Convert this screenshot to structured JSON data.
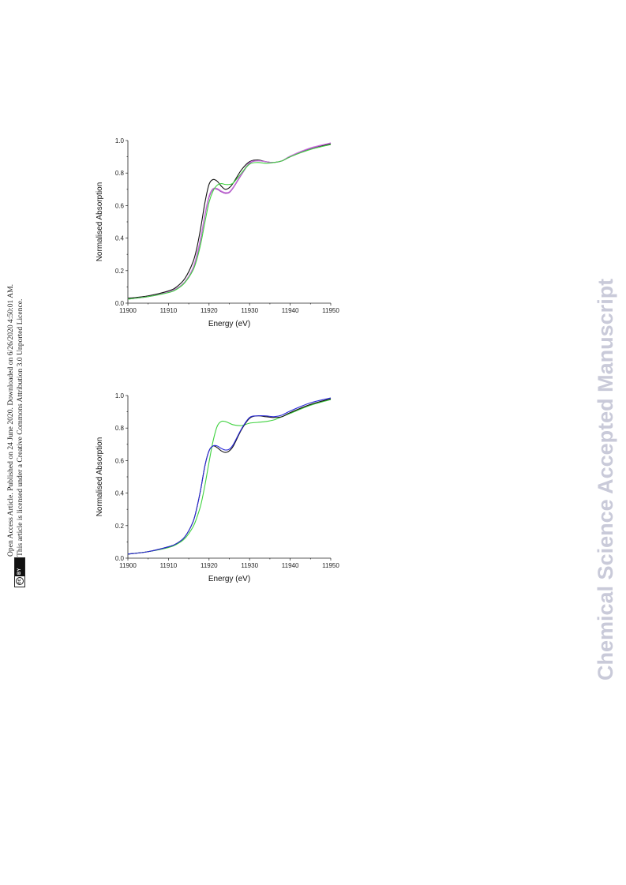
{
  "notice": {
    "line1": "Open Access Article. Published on 24 June 2020. Downloaded on 6/26/2020 4:50:01 AM.",
    "line2": "This article is licensed under a Creative Commons Attribution 3.0 Unported Licence.",
    "badge_cc": "cc",
    "badge_by": "BY"
  },
  "watermark": "Chemical Science Accepted Manuscript",
  "chart_data": [
    {
      "type": "line",
      "title": "",
      "xlabel": "Energy (eV)",
      "ylabel": "Normalised Absorption",
      "xlim": [
        11900,
        11950
      ],
      "ylim": [
        0.0,
        1.0
      ],
      "xticks": [
        11900,
        11910,
        11920,
        11930,
        11940,
        11950
      ],
      "yticks": [
        0.0,
        0.2,
        0.4,
        0.6,
        0.8,
        1.0
      ],
      "xtick_labels": [
        "11900",
        "11910",
        "11920",
        "11930",
        "11940",
        "11950"
      ],
      "ytick_labels": [
        "0.0",
        "0.2",
        "0.4",
        "0.6",
        "0.8",
        "1.0"
      ],
      "grid": false,
      "series": [
        {
          "color": "#111111",
          "x": [
            11900,
            11905,
            11910,
            11912,
            11914,
            11916,
            11917,
            11918,
            11919,
            11920,
            11921,
            11922,
            11923,
            11924,
            11925,
            11926,
            11928,
            11930,
            11932,
            11934,
            11936,
            11938,
            11940,
            11945,
            11950
          ],
          "y": [
            0.03,
            0.045,
            0.075,
            0.1,
            0.15,
            0.25,
            0.34,
            0.47,
            0.62,
            0.73,
            0.76,
            0.75,
            0.72,
            0.7,
            0.71,
            0.74,
            0.82,
            0.87,
            0.88,
            0.87,
            0.865,
            0.875,
            0.9,
            0.95,
            0.98
          ]
        },
        {
          "color": "#9b3fb5",
          "x": [
            11900,
            11905,
            11910,
            11912,
            11914,
            11916,
            11917,
            11918,
            11919,
            11920,
            11921,
            11922,
            11923,
            11924,
            11925,
            11926,
            11928,
            11930,
            11932,
            11934,
            11936,
            11938,
            11940,
            11945,
            11950
          ],
          "y": [
            0.025,
            0.04,
            0.068,
            0.09,
            0.13,
            0.21,
            0.29,
            0.4,
            0.54,
            0.65,
            0.7,
            0.7,
            0.685,
            0.675,
            0.68,
            0.71,
            0.79,
            0.86,
            0.875,
            0.87,
            0.865,
            0.875,
            0.9,
            0.95,
            0.985
          ]
        },
        {
          "color": "#cc77dd",
          "x": [
            11900,
            11905,
            11910,
            11912,
            11914,
            11916,
            11917,
            11918,
            11919,
            11920,
            11921,
            11922,
            11923,
            11924,
            11925,
            11926,
            11928,
            11930,
            11932,
            11934,
            11936,
            11938,
            11940,
            11945,
            11950
          ],
          "y": [
            0.025,
            0.04,
            0.068,
            0.09,
            0.13,
            0.215,
            0.3,
            0.41,
            0.55,
            0.66,
            0.705,
            0.705,
            0.69,
            0.68,
            0.685,
            0.715,
            0.795,
            0.865,
            0.875,
            0.87,
            0.865,
            0.875,
            0.905,
            0.955,
            0.985
          ]
        },
        {
          "color": "#3fd23f",
          "x": [
            11900,
            11905,
            11910,
            11912,
            11914,
            11916,
            11917,
            11918,
            11919,
            11920,
            11921,
            11922,
            11923,
            11924,
            11925,
            11926,
            11928,
            11930,
            11932,
            11934,
            11936,
            11938,
            11940,
            11945,
            11950
          ],
          "y": [
            0.025,
            0.04,
            0.065,
            0.085,
            0.125,
            0.2,
            0.27,
            0.37,
            0.5,
            0.62,
            0.69,
            0.725,
            0.735,
            0.73,
            0.73,
            0.74,
            0.8,
            0.855,
            0.865,
            0.86,
            0.865,
            0.875,
            0.9,
            0.945,
            0.975
          ]
        }
      ]
    },
    {
      "type": "line",
      "title": "",
      "xlabel": "Energy (eV)",
      "ylabel": "Normalised Absorption",
      "xlim": [
        11900,
        11950
      ],
      "ylim": [
        0.0,
        1.0
      ],
      "xticks": [
        11900,
        11910,
        11920,
        11930,
        11940,
        11950
      ],
      "yticks": [
        0.0,
        0.2,
        0.4,
        0.6,
        0.8,
        1.0
      ],
      "xtick_labels": [
        "11900",
        "11910",
        "11920",
        "11930",
        "11940",
        "11950"
      ],
      "ytick_labels": [
        "0.0",
        "0.2",
        "0.4",
        "0.6",
        "0.8",
        "1.0"
      ],
      "grid": false,
      "series": [
        {
          "color": "#3fd23f",
          "x": [
            11900,
            11905,
            11910,
            11912,
            11914,
            11916,
            11917,
            11918,
            11919,
            11920,
            11921,
            11922,
            11923,
            11924,
            11925,
            11926,
            11928,
            11930,
            11932,
            11934,
            11936,
            11938,
            11940,
            11945,
            11950
          ],
          "y": [
            0.025,
            0.04,
            0.065,
            0.085,
            0.12,
            0.19,
            0.25,
            0.33,
            0.45,
            0.59,
            0.72,
            0.81,
            0.84,
            0.84,
            0.83,
            0.82,
            0.815,
            0.83,
            0.835,
            0.84,
            0.85,
            0.87,
            0.89,
            0.94,
            0.975
          ]
        },
        {
          "color": "#111111",
          "x": [
            11900,
            11905,
            11910,
            11912,
            11914,
            11916,
            11917,
            11918,
            11919,
            11920,
            11921,
            11922,
            11923,
            11924,
            11925,
            11926,
            11928,
            11930,
            11932,
            11934,
            11936,
            11938,
            11940,
            11945,
            11950
          ],
          "y": [
            0.025,
            0.04,
            0.07,
            0.09,
            0.13,
            0.22,
            0.31,
            0.43,
            0.57,
            0.66,
            0.69,
            0.68,
            0.66,
            0.65,
            0.66,
            0.69,
            0.79,
            0.86,
            0.875,
            0.87,
            0.865,
            0.87,
            0.895,
            0.945,
            0.98
          ]
        },
        {
          "color": "#2a2ad8",
          "x": [
            11900,
            11905,
            11910,
            11912,
            11914,
            11916,
            11917,
            11918,
            11919,
            11920,
            11921,
            11922,
            11923,
            11924,
            11925,
            11926,
            11928,
            11930,
            11932,
            11934,
            11936,
            11938,
            11940,
            11945,
            11950
          ],
          "y": [
            0.025,
            0.04,
            0.07,
            0.09,
            0.13,
            0.22,
            0.31,
            0.43,
            0.57,
            0.66,
            0.69,
            0.69,
            0.675,
            0.665,
            0.67,
            0.7,
            0.795,
            0.865,
            0.875,
            0.875,
            0.87,
            0.88,
            0.905,
            0.955,
            0.985
          ]
        }
      ]
    }
  ]
}
